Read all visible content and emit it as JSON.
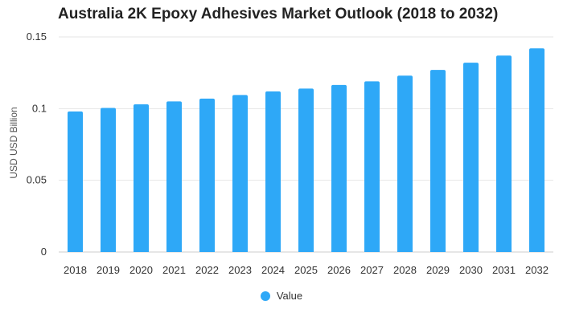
{
  "chart_data": {
    "type": "bar",
    "title": "Australia 2K Epoxy Adhesives Market Outlook (2018 to 2032)",
    "xlabel": "",
    "ylabel": "USD USD Billion",
    "categories": [
      "2018",
      "2019",
      "2020",
      "2021",
      "2022",
      "2023",
      "2024",
      "2025",
      "2026",
      "2027",
      "2028",
      "2029",
      "2030",
      "2031",
      "2032"
    ],
    "series": [
      {
        "name": "Value",
        "values": [
          0.098,
          0.1005,
          0.103,
          0.105,
          0.107,
          0.1095,
          0.112,
          0.114,
          0.1165,
          0.119,
          0.123,
          0.127,
          0.132,
          0.137,
          0.142
        ]
      }
    ],
    "ylim": [
      0,
      0.15
    ],
    "yticks": [
      0,
      0.05,
      0.1,
      0.15
    ],
    "ytick_labels": [
      "0",
      "0.05",
      "0.1",
      "0.15"
    ],
    "grid": true,
    "legend_position": "bottom",
    "colors": {
      "bar": "#2ea8f7",
      "grid": "#e6e6e6"
    }
  }
}
